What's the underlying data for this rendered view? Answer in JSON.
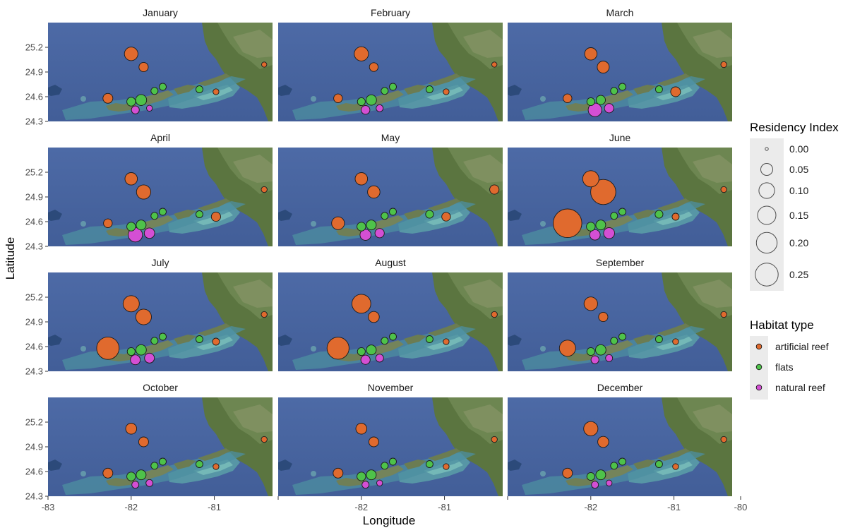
{
  "chart_data": {
    "type": "scatter",
    "subtype": "faceted bubble map",
    "xlabel": "Longitude",
    "ylabel": "Latitude",
    "xlim": [
      -83,
      -80.3
    ],
    "ylim": [
      24.3,
      25.5
    ],
    "x_ticks": [
      "-83",
      "-82",
      "-81",
      "-80"
    ],
    "y_ticks": [
      "24.3",
      "24.6",
      "24.9",
      "25.2"
    ],
    "background": "satellite map",
    "size_legend": {
      "title": "Residency Index",
      "values": [
        0.0,
        0.05,
        0.1,
        0.15,
        0.2,
        0.25
      ],
      "labels": [
        "0.00",
        "0.05",
        "0.10",
        "0.15",
        "0.20",
        "0.25"
      ]
    },
    "color_legend": {
      "title": "Habitat type",
      "items": [
        {
          "label": "artificial reef",
          "color": "#e06a2e"
        },
        {
          "label": "flats",
          "color": "#4ec24a"
        },
        {
          "label": "natural reef",
          "color": "#d44fd4"
        }
      ]
    },
    "stations": [
      {
        "lon": -82.0,
        "lat": 25.12,
        "type": "artificial reef"
      },
      {
        "lon": -81.85,
        "lat": 24.96,
        "type": "artificial reef"
      },
      {
        "lon": -82.28,
        "lat": 24.58,
        "type": "artificial reef"
      },
      {
        "lon": -80.98,
        "lat": 24.66,
        "type": "artificial reef"
      },
      {
        "lon": -80.4,
        "lat": 24.99,
        "type": "artificial reef"
      },
      {
        "lon": -82.0,
        "lat": 24.54,
        "type": "flats"
      },
      {
        "lon": -81.88,
        "lat": 24.56,
        "type": "flats"
      },
      {
        "lon": -81.72,
        "lat": 24.67,
        "type": "flats"
      },
      {
        "lon": -81.62,
        "lat": 24.72,
        "type": "flats"
      },
      {
        "lon": -81.18,
        "lat": 24.69,
        "type": "flats"
      },
      {
        "lon": -81.95,
        "lat": 24.44,
        "type": "natural reef"
      },
      {
        "lon": -81.78,
        "lat": 24.46,
        "type": "natural reef"
      }
    ],
    "panels": [
      {
        "month": "January",
        "ri": [
          0.07,
          0.025,
          0.03,
          0.005,
          0.003,
          0.02,
          0.04,
          0.01,
          0.01,
          0.01,
          0.015,
          0.005
        ]
      },
      {
        "month": "February",
        "ri": [
          0.08,
          0.02,
          0.02,
          0.005,
          0.003,
          0.015,
          0.035,
          0.01,
          0.01,
          0.01,
          0.02,
          0.01
        ]
      },
      {
        "month": "March",
        "ri": [
          0.055,
          0.05,
          0.02,
          0.03,
          0.005,
          0.015,
          0.025,
          0.01,
          0.01,
          0.01,
          0.07,
          0.025
        ]
      },
      {
        "month": "April",
        "ri": [
          0.055,
          0.08,
          0.02,
          0.025,
          0.005,
          0.02,
          0.03,
          0.01,
          0.01,
          0.01,
          0.08,
          0.035
        ]
      },
      {
        "month": "May",
        "ri": [
          0.055,
          0.055,
          0.06,
          0.02,
          0.025,
          0.02,
          0.03,
          0.01,
          0.01,
          0.015,
          0.04,
          0.025
        ]
      },
      {
        "month": "June",
        "ri": [
          0.11,
          0.31,
          0.42,
          0.01,
          0.005,
          0.02,
          0.03,
          0.01,
          0.01,
          0.015,
          0.035,
          0.04
        ]
      },
      {
        "month": "July",
        "ri": [
          0.11,
          0.1,
          0.24,
          0.01,
          0.005,
          0.015,
          0.035,
          0.01,
          0.01,
          0.01,
          0.03,
          0.03
        ]
      },
      {
        "month": "August",
        "ri": [
          0.16,
          0.04,
          0.23,
          0.005,
          0.005,
          0.015,
          0.03,
          0.01,
          0.01,
          0.01,
          0.025,
          0.015
        ]
      },
      {
        "month": "September",
        "ri": [
          0.07,
          0.025,
          0.11,
          0.005,
          0.005,
          0.015,
          0.035,
          0.01,
          0.01,
          0.01,
          0.015,
          0.01
        ]
      },
      {
        "month": "October",
        "ri": [
          0.04,
          0.03,
          0.03,
          0.005,
          0.005,
          0.02,
          0.03,
          0.01,
          0.01,
          0.01,
          0.01,
          0.01
        ]
      },
      {
        "month": "November",
        "ri": [
          0.04,
          0.03,
          0.03,
          0.005,
          0.005,
          0.02,
          0.03,
          0.01,
          0.01,
          0.01,
          0.01,
          0.005
        ]
      },
      {
        "month": "December",
        "ri": [
          0.08,
          0.04,
          0.03,
          0.005,
          0.005,
          0.015,
          0.03,
          0.01,
          0.01,
          0.01,
          0.01,
          0.005
        ]
      }
    ]
  }
}
